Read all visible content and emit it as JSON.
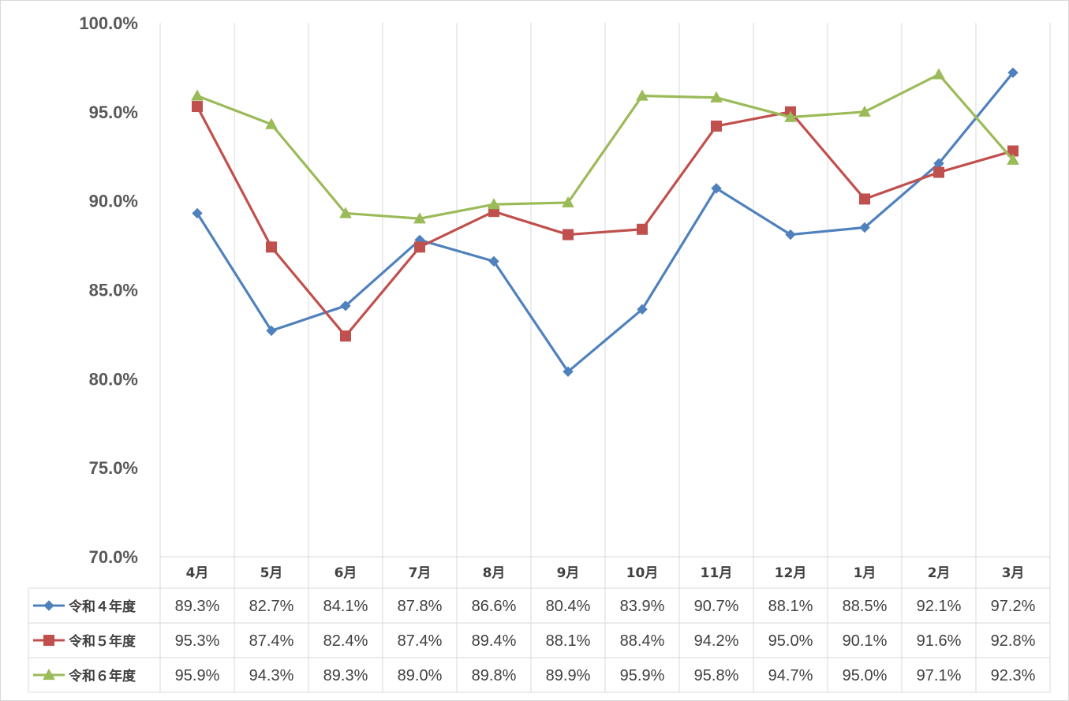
{
  "chart_data": {
    "type": "line",
    "title": "",
    "xlabel": "",
    "ylabel": "",
    "ylim": [
      70.0,
      100.0
    ],
    "ytick_step": 5.0,
    "ytick_labels": [
      "70.0%",
      "75.0%",
      "80.0%",
      "85.0%",
      "90.0%",
      "95.0%",
      "100.0%"
    ],
    "grid": "vertical",
    "legend": "data-table-bottom",
    "categories": [
      "4月",
      "5月",
      "6月",
      "7月",
      "8月",
      "9月",
      "10月",
      "11月",
      "12月",
      "1月",
      "2月",
      "3月"
    ],
    "series": [
      {
        "name": "令和４年度",
        "color": "#4F81BD",
        "marker": "diamond",
        "values": [
          89.3,
          82.7,
          84.1,
          87.8,
          86.6,
          80.4,
          83.9,
          90.7,
          88.1,
          88.5,
          92.1,
          97.2
        ],
        "labels": [
          "89.3%",
          "82.7%",
          "84.1%",
          "87.8%",
          "86.6%",
          "80.4%",
          "83.9%",
          "90.7%",
          "88.1%",
          "88.5%",
          "92.1%",
          "97.2%"
        ]
      },
      {
        "name": "令和５年度",
        "color": "#C0504D",
        "marker": "square",
        "values": [
          95.3,
          87.4,
          82.4,
          87.4,
          89.4,
          88.1,
          88.4,
          94.2,
          95.0,
          90.1,
          91.6,
          92.8
        ],
        "labels": [
          "95.3%",
          "87.4%",
          "82.4%",
          "87.4%",
          "89.4%",
          "88.1%",
          "88.4%",
          "94.2%",
          "95.0%",
          "90.1%",
          "91.6%",
          "92.8%"
        ]
      },
      {
        "name": "令和６年度",
        "color": "#9BBB59",
        "marker": "triangle",
        "values": [
          95.9,
          94.3,
          89.3,
          89.0,
          89.8,
          89.9,
          95.9,
          95.8,
          94.7,
          95.0,
          97.1,
          92.3
        ],
        "labels": [
          "95.9%",
          "94.3%",
          "89.3%",
          "89.0%",
          "89.8%",
          "89.9%",
          "95.9%",
          "95.8%",
          "94.7%",
          "95.0%",
          "97.1%",
          "92.3%"
        ]
      }
    ]
  }
}
